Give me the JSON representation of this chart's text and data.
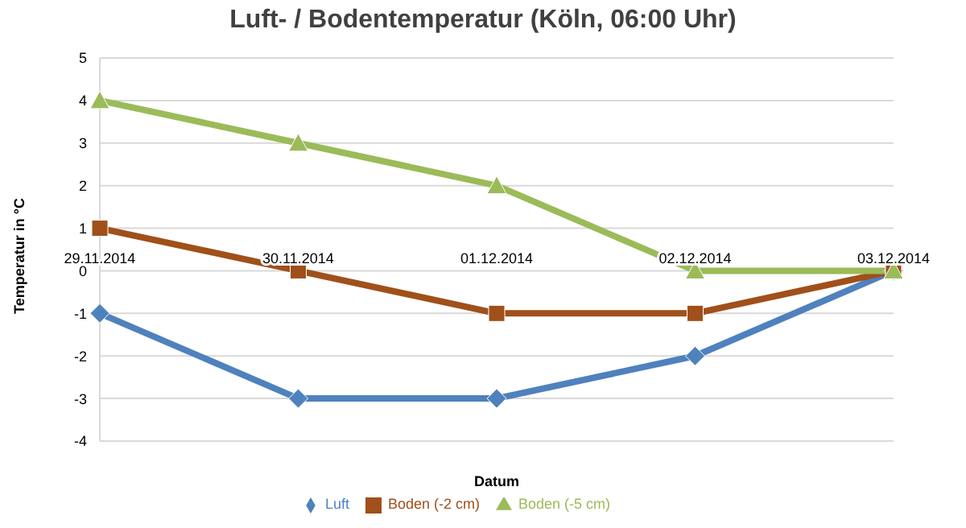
{
  "chart_data": {
    "type": "line",
    "title": "Luft- / Bodentemperatur (Köln, 06:00 Uhr)",
    "xlabel": "Datum",
    "ylabel": "Temperatur in °C",
    "categories": [
      "29.11.2014",
      "30.11.2014",
      "01.12.2014",
      "02.12.2014",
      "03.12.2014"
    ],
    "series": [
      {
        "name": "Luft",
        "color": "#4f81bd",
        "marker": "diamond",
        "values": [
          -1,
          -3,
          -3,
          -2,
          0
        ]
      },
      {
        "name": "Boden (-2 cm)",
        "color": "#a0501a",
        "marker": "square",
        "values": [
          1,
          0,
          -1,
          -1,
          0
        ]
      },
      {
        "name": "Boden (-5 cm)",
        "color": "#9bbb59",
        "marker": "triangle",
        "values": [
          4,
          3,
          2,
          0,
          0
        ]
      }
    ],
    "ylim": [
      -4,
      5
    ],
    "yticks": [
      -4,
      -3,
      -2,
      -1,
      0,
      1,
      2,
      3,
      4,
      5
    ],
    "grid": "y",
    "legend": "bottom",
    "line_style": "solid"
  }
}
